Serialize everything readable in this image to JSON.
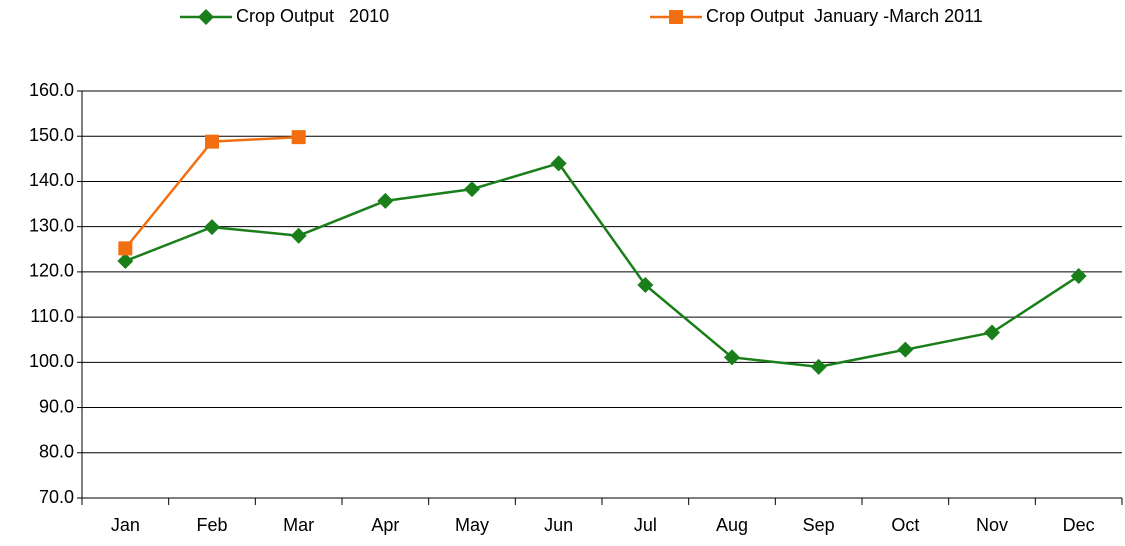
{
  "chart_data": {
    "type": "line",
    "categories": [
      "Jan",
      "Feb",
      "Mar",
      "Apr",
      "May",
      "Jun",
      "Jul",
      "Aug",
      "Sep",
      "Oct",
      "Nov",
      "Dec"
    ],
    "series": [
      {
        "name": "Crop Output   2010",
        "color": "#1a7f1a",
        "marker": "diamond",
        "values": [
          122.4,
          129.9,
          128.0,
          135.7,
          138.3,
          144.0,
          117.1,
          101.1,
          99.0,
          102.8,
          106.6,
          119.1
        ]
      },
      {
        "name": "Crop Output  January -March 2011",
        "color": "#f26f11",
        "marker": "square",
        "values": [
          125.2,
          148.8,
          149.8,
          null,
          null,
          null,
          null,
          null,
          null,
          null,
          null,
          null
        ]
      }
    ],
    "ylim": [
      70,
      160
    ],
    "yticks": [
      {
        "value": 70,
        "label": "70.0"
      },
      {
        "value": 80,
        "label": "80.0"
      },
      {
        "value": 90,
        "label": "90.0"
      },
      {
        "value": 100,
        "label": "100.0"
      },
      {
        "value": 110,
        "label": "110.0"
      },
      {
        "value": 120,
        "label": "120.0"
      },
      {
        "value": 130,
        "label": "130.0"
      },
      {
        "value": 140,
        "label": "140.0"
      },
      {
        "value": 150,
        "label": "150.0"
      },
      {
        "value": 160,
        "label": "160.0"
      }
    ],
    "grid": true,
    "legend": "top"
  }
}
